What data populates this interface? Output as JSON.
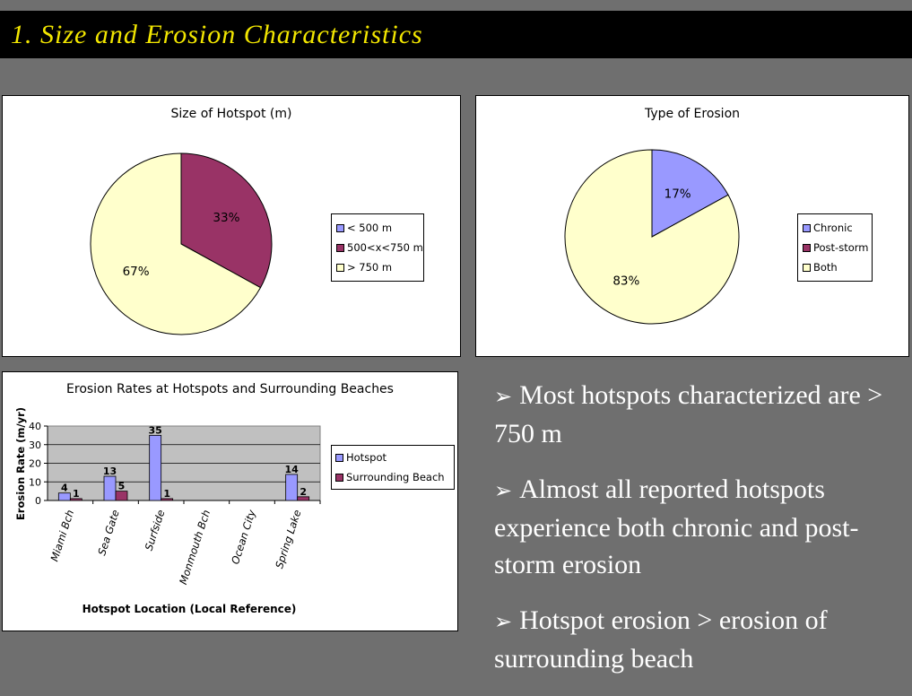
{
  "slide": {
    "title": "1. Size and Erosion Characteristics",
    "bullet_arrow": "➢",
    "bullets": [
      "Most hotspots characterized are > 750 m",
      "Almost all reported hotspots experience both chronic and post-storm erosion",
      "Hotspot erosion > erosion of surrounding beach"
    ]
  },
  "colors": {
    "title_text": "#f2e600",
    "background": "#6f6f6f",
    "periwinkle": "#9999ff",
    "maroon": "#993366",
    "cream": "#ffffcc",
    "plot_gray": "#c0c0c0"
  },
  "chart_data": [
    {
      "type": "pie",
      "title": "Size of Hotspot (m)",
      "labels": [
        "< 500 m",
        "500<x<750 m",
        "> 750 m"
      ],
      "values": [
        0,
        33,
        67
      ],
      "value_labels": [
        "",
        "33%",
        "67%"
      ],
      "colors": [
        "#9999ff",
        "#993366",
        "#ffffcc"
      ],
      "legend": "right"
    },
    {
      "type": "pie",
      "title": "Type of Erosion",
      "labels": [
        "Chronic",
        "Post-storm",
        "Both"
      ],
      "values": [
        17,
        0,
        83
      ],
      "value_labels": [
        "17%",
        "",
        "83%"
      ],
      "colors": [
        "#9999ff",
        "#993366",
        "#ffffcc"
      ],
      "legend": "right"
    },
    {
      "type": "bar",
      "title": "Erosion Rates at Hotspots and Surrounding Beaches",
      "xlabel": "Hotspot Location (Local Reference)",
      "ylabel": "Erosion Rate (m/yr)",
      "categories": [
        "Miami Bch",
        "Sea Gate",
        "Surfside",
        "Monmouth Bch",
        "Ocean City",
        "Spring Lake"
      ],
      "series": [
        {
          "name": "Hotspot",
          "values": [
            4,
            13,
            35,
            null,
            null,
            14
          ],
          "color": "#9999ff"
        },
        {
          "name": "Surrounding Beach",
          "values": [
            1,
            5,
            1,
            null,
            null,
            2
          ],
          "color": "#993366"
        }
      ],
      "ylim": [
        0,
        40
      ],
      "yticks": [
        0,
        10,
        20,
        30,
        40
      ],
      "grid": true,
      "legend": "right"
    }
  ]
}
